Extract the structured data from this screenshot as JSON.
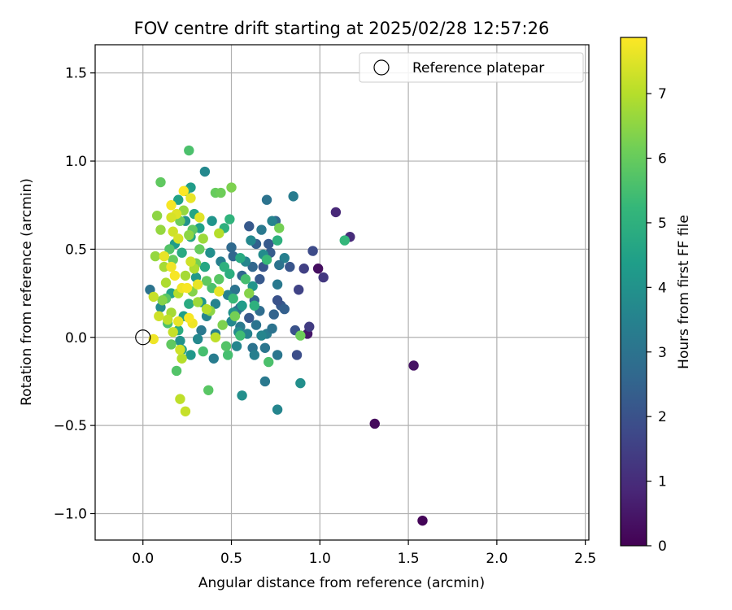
{
  "chart_data": {
    "type": "scatter",
    "title": "FOV centre drift starting at 2025/02/28 12:57:26",
    "xlabel": "Angular distance from reference (arcmin)",
    "ylabel": "Rotation from reference (arcmin)",
    "xlim": [
      -0.27,
      2.52
    ],
    "ylim": [
      -1.15,
      1.66
    ],
    "xticks": [
      "0.0",
      "0.5",
      "1.0",
      "1.5",
      "2.0",
      "2.5"
    ],
    "yticks": [
      "−1.0",
      "−0.5",
      "0.0",
      "0.5",
      "1.0",
      "1.5"
    ],
    "grid": true,
    "legend": {
      "location": "upper right",
      "entries": [
        {
          "label": "Reference platepar",
          "marker": "open-circle"
        }
      ]
    },
    "reference_point": {
      "x": 0.0,
      "y": 0.0
    },
    "colorbar": {
      "label": "Hours from first FF file",
      "range": [
        0,
        7.87
      ],
      "ticks": [
        "0",
        "1",
        "2",
        "3",
        "4",
        "5",
        "6",
        "7"
      ],
      "colormap": "viridis",
      "colors": [
        "#440154",
        "#482878",
        "#3e4989",
        "#31688e",
        "#26828e",
        "#1f9e89",
        "#35b779",
        "#6ece58",
        "#b5de2b",
        "#fde725"
      ]
    },
    "series": [
      {
        "points": [
          {
            "x": 1.58,
            "y": -1.04,
            "c": 0.1
          },
          {
            "x": 1.31,
            "y": -0.49,
            "c": 0.2
          },
          {
            "x": 1.53,
            "y": -0.16,
            "c": 0.4
          },
          {
            "x": 0.99,
            "y": 0.39,
            "c": 0.3
          },
          {
            "x": 0.93,
            "y": 0.02,
            "c": 0.5
          },
          {
            "x": 1.09,
            "y": 0.71,
            "c": 0.9
          },
          {
            "x": 1.17,
            "y": 0.57,
            "c": 1.0
          },
          {
            "x": 1.02,
            "y": 0.34,
            "c": 1.3
          },
          {
            "x": 0.94,
            "y": 0.06,
            "c": 1.4
          },
          {
            "x": 0.96,
            "y": 0.49,
            "c": 1.8
          },
          {
            "x": 0.91,
            "y": 0.39,
            "c": 1.5
          },
          {
            "x": 0.88,
            "y": 0.27,
            "c": 1.6
          },
          {
            "x": 0.86,
            "y": 0.04,
            "c": 2.0
          },
          {
            "x": 0.87,
            "y": -0.1,
            "c": 1.9
          },
          {
            "x": 0.83,
            "y": 0.4,
            "c": 2.1
          },
          {
            "x": 0.78,
            "y": 0.18,
            "c": 2.2
          },
          {
            "x": 0.8,
            "y": 0.16,
            "c": 2.4
          },
          {
            "x": 0.76,
            "y": 0.21,
            "c": 2.0
          },
          {
            "x": 0.74,
            "y": 0.13,
            "c": 2.5
          },
          {
            "x": 0.72,
            "y": 0.48,
            "c": 2.3
          },
          {
            "x": 0.71,
            "y": 0.53,
            "c": 2.2
          },
          {
            "x": 0.75,
            "y": 0.66,
            "c": 2.6
          },
          {
            "x": 0.7,
            "y": 0.78,
            "c": 3.0
          },
          {
            "x": 0.68,
            "y": 0.4,
            "c": 2.1
          },
          {
            "x": 0.66,
            "y": 0.33,
            "c": 2.2
          },
          {
            "x": 0.64,
            "y": 0.53,
            "c": 2.4
          },
          {
            "x": 0.62,
            "y": 0.4,
            "c": 2.6
          },
          {
            "x": 0.6,
            "y": 0.63,
            "c": 2.2
          },
          {
            "x": 0.67,
            "y": 0.61,
            "c": 3.2
          },
          {
            "x": 0.63,
            "y": 0.21,
            "c": 2.5
          },
          {
            "x": 0.66,
            "y": 0.15,
            "c": 2.8
          },
          {
            "x": 0.64,
            "y": 0.07,
            "c": 3.0
          },
          {
            "x": 0.6,
            "y": 0.11,
            "c": 2.2
          },
          {
            "x": 0.56,
            "y": 0.35,
            "c": 2.6
          },
          {
            "x": 0.55,
            "y": 0.17,
            "c": 3.1
          },
          {
            "x": 0.53,
            "y": 0.15,
            "c": 2.9
          },
          {
            "x": 0.5,
            "y": 0.51,
            "c": 2.7
          },
          {
            "x": 0.51,
            "y": 0.46,
            "c": 2.6
          },
          {
            "x": 0.52,
            "y": 0.27,
            "c": 3.0
          },
          {
            "x": 0.55,
            "y": 0.06,
            "c": 3.2
          },
          {
            "x": 0.59,
            "y": 0.02,
            "c": 3.5
          },
          {
            "x": 0.62,
            "y": -0.06,
            "c": 3.0
          },
          {
            "x": 0.63,
            "y": -0.1,
            "c": 3.4
          },
          {
            "x": 0.69,
            "y": -0.06,
            "c": 3.1
          },
          {
            "x": 0.7,
            "y": 0.02,
            "c": 3.3
          },
          {
            "x": 0.67,
            "y": 0.01,
            "c": 3.6
          },
          {
            "x": 0.73,
            "y": 0.05,
            "c": 3.0
          },
          {
            "x": 0.76,
            "y": -0.1,
            "c": 3.1
          },
          {
            "x": 0.69,
            "y": -0.25,
            "c": 3.2
          },
          {
            "x": 0.76,
            "y": -0.41,
            "c": 3.6
          },
          {
            "x": 0.56,
            "y": -0.33,
            "c": 3.9
          },
          {
            "x": 0.89,
            "y": -0.26,
            "c": 3.9
          },
          {
            "x": 0.76,
            "y": 0.3,
            "c": 3.2
          },
          {
            "x": 0.8,
            "y": 0.45,
            "c": 3.4
          },
          {
            "x": 0.85,
            "y": 0.8,
            "c": 3.3
          },
          {
            "x": 0.77,
            "y": 0.41,
            "c": 3.0
          },
          {
            "x": 0.73,
            "y": 0.66,
            "c": 3.5
          },
          {
            "x": 0.68,
            "y": 0.47,
            "c": 3.8
          },
          {
            "x": 0.62,
            "y": 0.29,
            "c": 4.1
          },
          {
            "x": 0.58,
            "y": 0.43,
            "c": 3.6
          },
          {
            "x": 0.61,
            "y": 0.55,
            "c": 3.7
          },
          {
            "x": 0.56,
            "y": 0.18,
            "c": 4.3
          },
          {
            "x": 0.54,
            "y": 0.03,
            "c": 3.8
          },
          {
            "x": 0.53,
            "y": -0.05,
            "c": 3.6
          },
          {
            "x": 0.51,
            "y": 0.14,
            "c": 4.0
          },
          {
            "x": 0.5,
            "y": 0.09,
            "c": 3.7
          },
          {
            "x": 0.48,
            "y": 0.24,
            "c": 3.5
          },
          {
            "x": 0.44,
            "y": 0.43,
            "c": 3.4
          },
          {
            "x": 0.41,
            "y": 0.19,
            "c": 3.5
          },
          {
            "x": 0.41,
            "y": 0.02,
            "c": 3.4
          },
          {
            "x": 0.4,
            "y": -0.12,
            "c": 3.3
          },
          {
            "x": 0.36,
            "y": 0.12,
            "c": 3.6
          },
          {
            "x": 0.33,
            "y": 0.04,
            "c": 3.2
          },
          {
            "x": 0.31,
            "y": -0.01,
            "c": 3.7
          },
          {
            "x": 0.27,
            "y": -0.1,
            "c": 4.2
          },
          {
            "x": 0.21,
            "y": -0.02,
            "c": 4.0
          },
          {
            "x": 0.22,
            "y": -0.07,
            "c": 4.4
          },
          {
            "x": 0.38,
            "y": 0.48,
            "c": 3.9
          },
          {
            "x": 0.39,
            "y": 0.66,
            "c": 4.1
          },
          {
            "x": 0.35,
            "y": 0.94,
            "c": 3.7
          },
          {
            "x": 0.27,
            "y": 0.85,
            "c": 4.3
          },
          {
            "x": 0.29,
            "y": 0.7,
            "c": 4.6
          },
          {
            "x": 0.24,
            "y": 0.66,
            "c": 4.0
          },
          {
            "x": 0.32,
            "y": 0.62,
            "c": 4.5
          },
          {
            "x": 0.35,
            "y": 0.4,
            "c": 4.7
          },
          {
            "x": 0.3,
            "y": 0.34,
            "c": 4.2
          },
          {
            "x": 0.33,
            "y": 0.2,
            "c": 4.1
          },
          {
            "x": 0.26,
            "y": 0.19,
            "c": 4.8
          },
          {
            "x": 0.23,
            "y": 0.12,
            "c": 4.4
          },
          {
            "x": 0.2,
            "y": 0.04,
            "c": 4.9
          },
          {
            "x": 0.04,
            "y": 0.27,
            "c": 3.0
          },
          {
            "x": 0.1,
            "y": 0.17,
            "c": 3.8
          },
          {
            "x": 0.16,
            "y": 0.25,
            "c": 4.5
          },
          {
            "x": 0.18,
            "y": 0.53,
            "c": 4.3
          },
          {
            "x": 0.2,
            "y": 0.78,
            "c": 4.5
          },
          {
            "x": 0.24,
            "y": 0.83,
            "c": 4.9
          },
          {
            "x": 0.27,
            "y": 0.57,
            "c": 4.6
          },
          {
            "x": 0.22,
            "y": 0.48,
            "c": 4.8
          },
          {
            "x": 0.46,
            "y": 0.62,
            "c": 5.0
          },
          {
            "x": 0.49,
            "y": 0.67,
            "c": 5.1
          },
          {
            "x": 0.55,
            "y": 0.45,
            "c": 4.8
          },
          {
            "x": 0.46,
            "y": 0.4,
            "c": 5.0
          },
          {
            "x": 0.49,
            "y": 0.36,
            "c": 4.9
          },
          {
            "x": 0.51,
            "y": 0.22,
            "c": 5.3
          },
          {
            "x": 0.58,
            "y": 0.33,
            "c": 5.5
          },
          {
            "x": 0.63,
            "y": 0.18,
            "c": 5.0
          },
          {
            "x": 0.7,
            "y": 0.44,
            "c": 5.3
          },
          {
            "x": 0.76,
            "y": 0.55,
            "c": 5.0
          },
          {
            "x": 1.14,
            "y": 0.55,
            "c": 5.2
          },
          {
            "x": 0.71,
            "y": -0.14,
            "c": 5.6
          },
          {
            "x": 0.55,
            "y": 0.01,
            "c": 5.4
          },
          {
            "x": 0.48,
            "y": -0.1,
            "c": 5.5
          },
          {
            "x": 0.47,
            "y": -0.05,
            "c": 5.7
          },
          {
            "x": 0.43,
            "y": 0.33,
            "c": 5.8
          },
          {
            "x": 0.39,
            "y": 0.28,
            "c": 5.6
          },
          {
            "x": 0.36,
            "y": 0.32,
            "c": 5.9
          },
          {
            "x": 0.37,
            "y": -0.3,
            "c": 5.8
          },
          {
            "x": 0.34,
            "y": -0.08,
            "c": 5.5
          },
          {
            "x": 0.26,
            "y": 1.06,
            "c": 5.6
          },
          {
            "x": 0.1,
            "y": 0.88,
            "c": 5.9
          },
          {
            "x": 0.19,
            "y": -0.19,
            "c": 5.7
          },
          {
            "x": 0.16,
            "y": -0.04,
            "c": 5.9
          },
          {
            "x": 0.14,
            "y": 0.08,
            "c": 5.6
          },
          {
            "x": 0.13,
            "y": 0.22,
            "c": 5.8
          },
          {
            "x": 0.17,
            "y": 0.44,
            "c": 6.0
          },
          {
            "x": 0.15,
            "y": 0.5,
            "c": 5.7
          },
          {
            "x": 0.21,
            "y": 0.66,
            "c": 6.1
          },
          {
            "x": 0.28,
            "y": 0.61,
            "c": 5.9
          },
          {
            "x": 0.3,
            "y": 0.42,
            "c": 6.2
          },
          {
            "x": 0.32,
            "y": 0.5,
            "c": 6.0
          },
          {
            "x": 0.41,
            "y": 0.82,
            "c": 6.0
          },
          {
            "x": 0.44,
            "y": 0.82,
            "c": 6.1
          },
          {
            "x": 0.5,
            "y": 0.85,
            "c": 6.3
          },
          {
            "x": 0.77,
            "y": 0.62,
            "c": 6.2
          },
          {
            "x": 0.89,
            "y": 0.01,
            "c": 6.1
          },
          {
            "x": 0.6,
            "y": 0.25,
            "c": 6.4
          },
          {
            "x": 0.52,
            "y": 0.12,
            "c": 6.2
          },
          {
            "x": 0.45,
            "y": 0.07,
            "c": 6.3
          },
          {
            "x": 0.38,
            "y": 0.15,
            "c": 6.5
          },
          {
            "x": 0.31,
            "y": 0.2,
            "c": 6.7
          },
          {
            "x": 0.28,
            "y": 0.26,
            "c": 6.4
          },
          {
            "x": 0.26,
            "y": 0.58,
            "c": 6.5
          },
          {
            "x": 0.23,
            "y": 0.72,
            "c": 6.6
          },
          {
            "x": 0.1,
            "y": 0.61,
            "c": 6.6
          },
          {
            "x": 0.08,
            "y": 0.69,
            "c": 6.5
          },
          {
            "x": 0.07,
            "y": 0.46,
            "c": 6.6
          },
          {
            "x": 0.12,
            "y": 0.4,
            "c": 6.8
          },
          {
            "x": 0.13,
            "y": 0.31,
            "c": 6.9
          },
          {
            "x": 0.11,
            "y": 0.21,
            "c": 6.4
          },
          {
            "x": 0.16,
            "y": 0.14,
            "c": 6.8
          },
          {
            "x": 0.2,
            "y": 0.25,
            "c": 7.0
          },
          {
            "x": 0.24,
            "y": 0.35,
            "c": 6.8
          },
          {
            "x": 0.29,
            "y": 0.39,
            "c": 6.9
          },
          {
            "x": 0.34,
            "y": 0.56,
            "c": 6.7
          },
          {
            "x": 0.43,
            "y": 0.59,
            "c": 7.0
          },
          {
            "x": 0.41,
            "y": 0.0,
            "c": 7.1
          },
          {
            "x": 0.36,
            "y": 0.16,
            "c": 7.0
          },
          {
            "x": 0.22,
            "y": -0.12,
            "c": 7.0
          },
          {
            "x": 0.21,
            "y": -0.35,
            "c": 7.1
          },
          {
            "x": 0.24,
            "y": -0.42,
            "c": 7.2
          },
          {
            "x": 0.21,
            "y": -0.07,
            "c": 7.3
          },
          {
            "x": 0.17,
            "y": 0.03,
            "c": 7.2
          },
          {
            "x": 0.14,
            "y": 0.1,
            "c": 7.1
          },
          {
            "x": 0.09,
            "y": 0.12,
            "c": 7.3
          },
          {
            "x": 0.06,
            "y": 0.23,
            "c": 7.2
          },
          {
            "x": 0.17,
            "y": 0.6,
            "c": 7.3
          },
          {
            "x": 0.2,
            "y": 0.56,
            "c": 7.4
          },
          {
            "x": 0.19,
            "y": 0.7,
            "c": 7.5
          },
          {
            "x": 0.16,
            "y": 0.68,
            "c": 7.4
          },
          {
            "x": 0.32,
            "y": 0.68,
            "c": 7.5
          },
          {
            "x": 0.27,
            "y": 0.43,
            "c": 7.3
          },
          {
            "x": 0.43,
            "y": 0.26,
            "c": 7.6
          },
          {
            "x": 0.31,
            "y": 0.3,
            "c": 7.6
          },
          {
            "x": 0.22,
            "y": 0.28,
            "c": 7.7
          },
          {
            "x": 0.25,
            "y": 0.28,
            "c": 7.8
          },
          {
            "x": 0.28,
            "y": 0.08,
            "c": 7.7
          },
          {
            "x": 0.26,
            "y": 0.11,
            "c": 7.8
          },
          {
            "x": 0.2,
            "y": 0.09,
            "c": 7.6
          },
          {
            "x": 0.16,
            "y": 0.4,
            "c": 7.7
          },
          {
            "x": 0.18,
            "y": 0.35,
            "c": 7.8
          },
          {
            "x": 0.12,
            "y": 0.46,
            "c": 7.6
          },
          {
            "x": 0.06,
            "y": -0.01,
            "c": 7.7
          },
          {
            "x": 0.16,
            "y": 0.75,
            "c": 7.8
          },
          {
            "x": 0.23,
            "y": 0.83,
            "c": 7.85
          },
          {
            "x": 0.27,
            "y": 0.79,
            "c": 7.6
          }
        ]
      }
    ]
  }
}
